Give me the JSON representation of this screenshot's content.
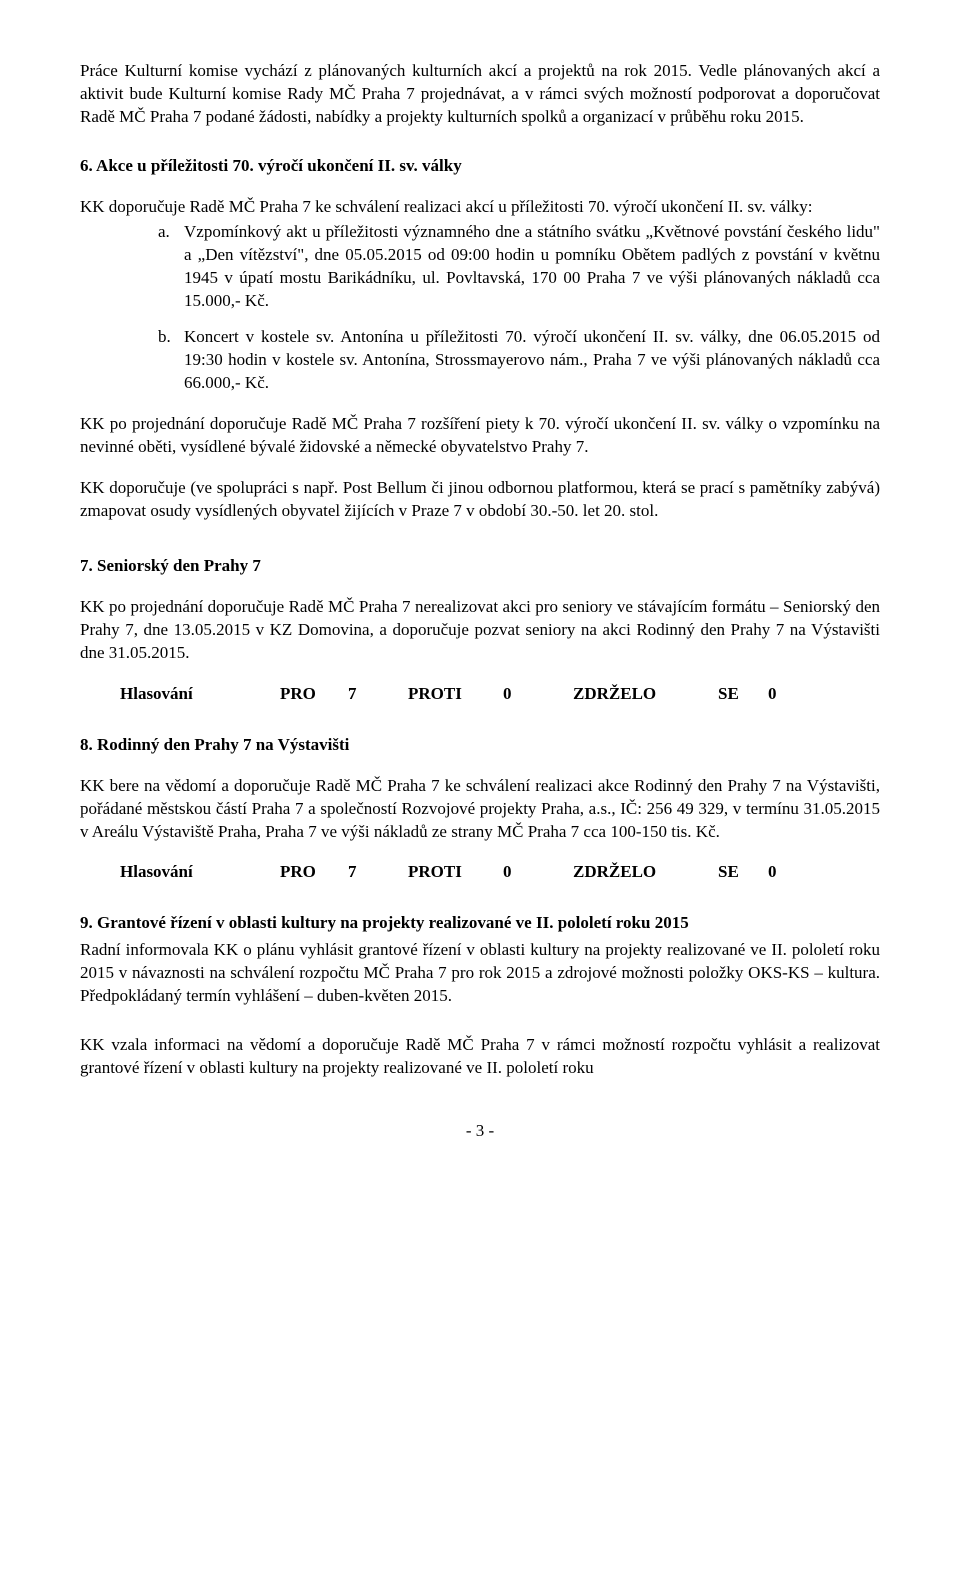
{
  "p1": "Práce Kulturní komise vychází z plánovaných kulturních akcí a projektů na rok 2015. Vedle plánovaných akcí a aktivit bude Kulturní komise Rady MČ Praha 7 projednávat, a v rámci svých možností podporovat a doporučovat Radě MČ Praha 7 podané žádosti, nabídky a projekty kulturních spolků a organizací v průběhu roku 2015.",
  "h6": "6.   Akce u příležitosti 70. výročí ukončení II. sv. války",
  "p2": "KK doporučuje Radě MČ Praha 7 ke schválení realizaci akcí u příležitosti 70. výročí ukončení II. sv. války:",
  "list6": [
    {
      "marker": "a.",
      "text": "Vzpomínkový akt u příležitosti významného dne a státního svátku „Květnové povstání českého lidu\" a „Den vítězství\", dne 05.05.2015 od 09:00 hodin u pomníku Obětem padlých z povstání v květnu 1945 v úpatí mostu Barikádníku, ul. Povltavská, 170 00 Praha 7 ve výši plánovaných nákladů cca 15.000,- Kč."
    },
    {
      "marker": "b.",
      "text": "Koncert v kostele sv. Antonína u příležitosti 70. výročí ukončení II. sv. války, dne 06.05.2015 od 19:30 hodin v kostele sv. Antonína, Strossmayerovo nám., Praha 7 ve  výši plánovaných nákladů cca 66.000,- Kč."
    }
  ],
  "p3": "KK po projednání doporučuje Radě MČ Praha 7 rozšíření piety k 70. výročí ukončení II. sv. války o vzpomínku na nevinné oběti, vysídlené bývalé židovské a německé obyvatelstvo Prahy 7.",
  "p4": "KK doporučuje (ve spolupráci s např. Post Bellum či jinou odbornou platformou, která se prací s pamětníky zabývá) zmapovat osudy vysídlených obyvatel žijících v Praze 7 v období 30.-50. let 20. stol.",
  "h7": "7.   Seniorský den Prahy 7",
  "p5": "KK po projednání doporučuje Radě MČ Praha 7 nerealizovat akci pro seniory ve stávajícím formátu – Seniorský den Prahy 7, dne 13.05.2015 v KZ Domovina, a doporučuje pozvat seniory na akci Rodinný den Prahy 7 na Výstavišti dne 31.05.2015.",
  "vote": {
    "label": "Hlasování",
    "pro_label": "PRO",
    "pro_val": "7",
    "proti_label": "PROTI",
    "proti_val": "0",
    "zdr_label": "ZDRŽELO",
    "se_label": "SE",
    "zdr_val": "0"
  },
  "h8": "8.   Rodinný den Prahy 7 na Výstavišti",
  "p6": "KK bere na vědomí a doporučuje Radě MČ Praha 7 ke schválení realizaci akce Rodinný den Prahy 7 na Výstavišti, pořádané městskou částí Praha 7 a společností Rozvojové projekty Praha, a.s., IČ: 256 49 329, v termínu 31.05.2015 v Areálu Výstaviště Praha, Praha 7 ve výši nákladů ze strany MČ Praha 7 cca 100-150 tis. Kč.",
  "h9": "9.   Grantové řízení v oblasti kultury na projekty realizované ve II. pololetí roku 2015",
  "p7": "Radní informovala KK o plánu vyhlásit grantové řízení v oblasti kultury na projekty realizované ve II. pololetí roku 2015 v návaznosti na schválení rozpočtu MČ Praha 7 pro rok 2015 a zdrojové možnosti položky OKS-KS – kultura. Předpokládaný termín vyhlášení – duben-květen 2015.",
  "p8": "KK vzala informaci na vědomí a doporučuje Radě MČ Praha 7 v rámci možností rozpočtu vyhlásit a realizovat grantové řízení v oblasti kultury na projekty realizované ve II. pololetí roku",
  "page_num": "- 3 -"
}
